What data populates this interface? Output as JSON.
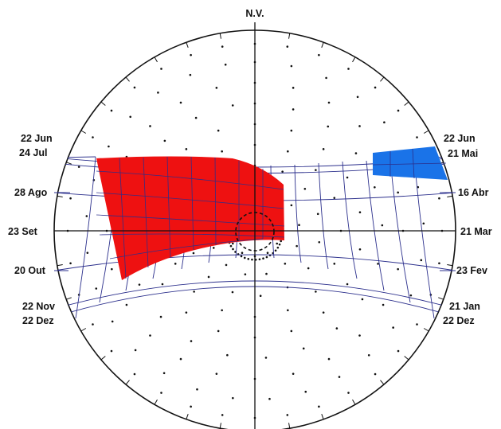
{
  "title": "N.V.",
  "labels_left": [
    "22 Jun",
    "24 Jul",
    "28 Ago",
    "23 Set",
    "20 Out",
    "22 Nov",
    "22 Dez"
  ],
  "labels_right": [
    "22 Jun",
    "21 Mai",
    "16 Abr",
    "21 Mar",
    "23 Fev",
    "21 Jan",
    "22 Dez"
  ],
  "colors": {
    "outline": "#111111",
    "grid": "#2b2f8c",
    "mask_left": "#ee1111",
    "mask_right": "#1a73e8",
    "dots": "#111111"
  }
}
